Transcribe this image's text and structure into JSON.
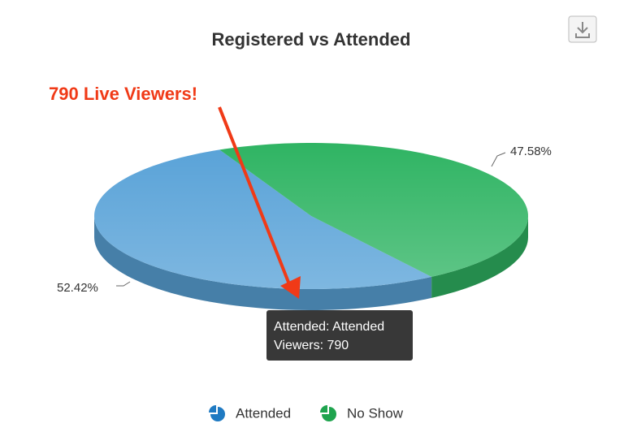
{
  "chart_data": {
    "type": "pie",
    "title": "Registered vs Attended",
    "categories": [
      "Attended",
      "No Show"
    ],
    "values": [
      52.42,
      47.58
    ],
    "value_labels": [
      "52.42%",
      "47.58%"
    ],
    "colors": [
      "#5aa3d8",
      "#2fb463"
    ],
    "annotation": "790 Live Viewers!",
    "tooltip": [
      "Attended: Attended",
      "Viewers: 790"
    ]
  }
}
